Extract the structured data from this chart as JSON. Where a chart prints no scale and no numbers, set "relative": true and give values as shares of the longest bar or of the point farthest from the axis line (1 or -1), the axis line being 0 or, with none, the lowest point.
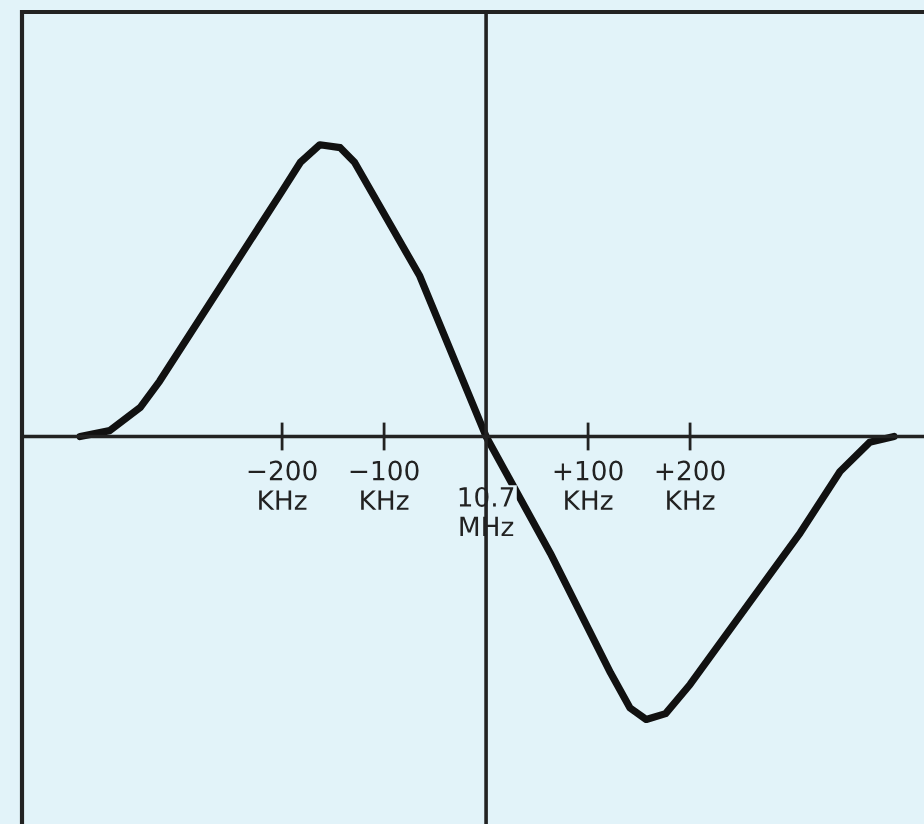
{
  "chart_data": {
    "type": "line",
    "relative": true,
    "x": [
      -398,
      -369,
      -339,
      -320,
      -261,
      -202,
      -182,
      -163,
      -143,
      -129,
      -65,
      0,
      63,
      122,
      141,
      157,
      176,
      200,
      308,
      347,
      376,
      400
    ],
    "series": [
      {
        "color": "#111111",
        "values": [
          0,
          0.02,
          0.1,
          0.19,
          0.51,
          0.83,
          0.94,
          1.0,
          0.99,
          0.94,
          0.55,
          0,
          -0.4,
          -0.81,
          -0.93,
          -0.97,
          -0.95,
          -0.85,
          -0.33,
          -0.12,
          -0.02,
          0
        ]
      }
    ],
    "xlim": [
      -455,
      447
    ],
    "xticks": [
      {
        "value": -200,
        "label": "−200\nKHz"
      },
      {
        "value": -100,
        "label": "−100\nKHz"
      },
      {
        "value": 100,
        "label": "+100\nKHz"
      },
      {
        "value": 200,
        "label": "+200\nKHz"
      }
    ],
    "annotations": [
      {
        "text": "10.7\nMHz",
        "x": 0,
        "y": 0
      }
    ],
    "tick_labels": "x",
    "grid": false,
    "legend": false,
    "marker": "none",
    "line_style": "solid"
  }
}
